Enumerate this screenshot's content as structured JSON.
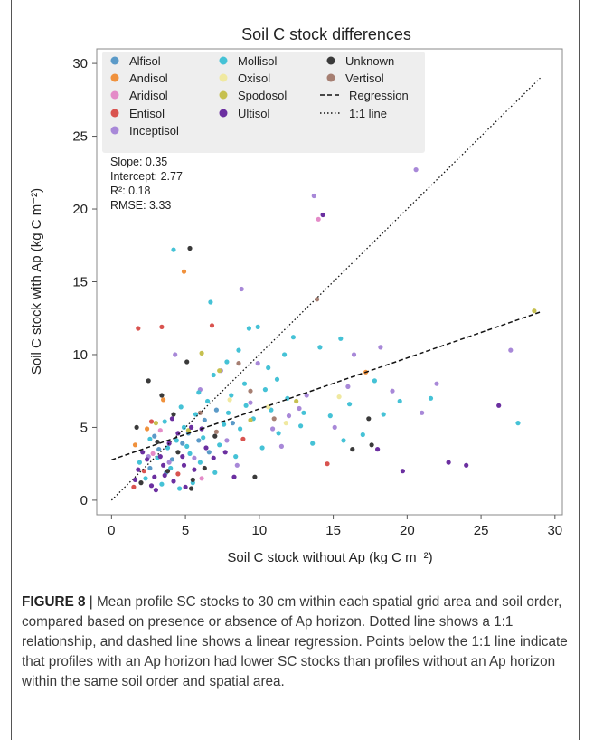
{
  "chart_data": {
    "type": "scatter",
    "title": "Soil C stock differences",
    "xlabel": "Soil C stock without Ap (kg C m⁻²)",
    "ylabel": "Soil C stock with Ap (kg C m⁻²)",
    "xlim": [
      -1,
      30.5
    ],
    "ylim": [
      -1,
      31
    ],
    "xticks": [
      0,
      5,
      10,
      15,
      20,
      25,
      30
    ],
    "yticks": [
      0,
      5,
      10,
      15,
      20,
      25,
      30
    ],
    "grid": false,
    "legend_placement": "top-left",
    "stats": [
      {
        "label": "Slope: 0.35"
      },
      {
        "label": "Intercept: 2.77"
      },
      {
        "label": "R²: 0.18"
      },
      {
        "label": "RMSE: 3.33"
      }
    ],
    "regression": {
      "slope": 0.35,
      "intercept": 2.77,
      "x": [
        0,
        29
      ],
      "label": "Regression"
    },
    "identity": {
      "x": [
        0,
        29
      ],
      "label": "1:1 line"
    },
    "series": [
      {
        "name": "Alfisol",
        "color": "#5b9ac8",
        "points": [
          [
            3.2,
            3.5
          ],
          [
            4.1,
            2.8
          ],
          [
            5.2,
            4.6
          ],
          [
            6.3,
            5.5
          ],
          [
            2.6,
            2.2
          ],
          [
            4.8,
            3.9
          ],
          [
            7.1,
            6.2
          ],
          [
            3.7,
            1.9
          ],
          [
            5.9,
            4.1
          ],
          [
            8.2,
            5.3
          ],
          [
            2.9,
            4.4
          ],
          [
            6.6,
            3.3
          ]
        ]
      },
      {
        "name": "Andisol",
        "color": "#f0913c",
        "points": [
          [
            4.9,
            15.7
          ],
          [
            1.6,
            3.8
          ],
          [
            2.4,
            4.9
          ],
          [
            17.2,
            8.8
          ],
          [
            3.5,
            6.9
          ]
        ]
      },
      {
        "name": "Aridisol",
        "color": "#e48bc8",
        "points": [
          [
            14.0,
            19.3
          ],
          [
            2.8,
            3.2
          ],
          [
            6.1,
            1.5
          ],
          [
            3.3,
            4.8
          ]
        ]
      },
      {
        "name": "Entisol",
        "color": "#d9534f",
        "points": [
          [
            1.8,
            11.8
          ],
          [
            3.4,
            11.9
          ],
          [
            14.6,
            2.5
          ],
          [
            2.2,
            2.0
          ],
          [
            6.8,
            12.0
          ],
          [
            1.5,
            0.9
          ],
          [
            4.5,
            1.8
          ],
          [
            2.7,
            5.4
          ],
          [
            8.9,
            4.2
          ]
        ]
      },
      {
        "name": "Inceptisol",
        "color": "#a888d8",
        "points": [
          [
            20.6,
            22.7
          ],
          [
            13.7,
            20.9
          ],
          [
            4.3,
            10.0
          ],
          [
            8.8,
            14.5
          ],
          [
            27.0,
            10.3
          ],
          [
            22.0,
            8.0
          ],
          [
            19.0,
            7.5
          ],
          [
            16.4,
            10.0
          ],
          [
            21.0,
            6.0
          ],
          [
            18.2,
            10.5
          ],
          [
            12.0,
            5.8
          ],
          [
            10.9,
            4.9
          ],
          [
            7.4,
            8.9
          ],
          [
            9.4,
            6.7
          ],
          [
            6.0,
            7.6
          ],
          [
            13.2,
            7.2
          ],
          [
            11.5,
            3.7
          ],
          [
            8.5,
            2.4
          ],
          [
            5.6,
            2.9
          ],
          [
            15.1,
            5.0
          ],
          [
            9.9,
            9.4
          ],
          [
            3.9,
            2.6
          ],
          [
            2.5,
            3.0
          ],
          [
            7.8,
            4.1
          ],
          [
            16.0,
            7.8
          ],
          [
            12.7,
            6.3
          ]
        ]
      },
      {
        "name": "Mollisol",
        "color": "#45c2d6",
        "points": [
          [
            4.2,
            17.2
          ],
          [
            6.7,
            13.6
          ],
          [
            9.9,
            11.9
          ],
          [
            12.3,
            11.2
          ],
          [
            14.1,
            10.5
          ],
          [
            15.5,
            11.1
          ],
          [
            17.8,
            8.2
          ],
          [
            21.6,
            7.0
          ],
          [
            27.5,
            5.3
          ],
          [
            13.0,
            6.0
          ],
          [
            11.2,
            8.3
          ],
          [
            10.4,
            7.6
          ],
          [
            9.1,
            6.5
          ],
          [
            8.1,
            7.2
          ],
          [
            7.6,
            5.2
          ],
          [
            6.5,
            6.8
          ],
          [
            5.7,
            5.9
          ],
          [
            4.9,
            5.0
          ],
          [
            4.4,
            4.1
          ],
          [
            3.8,
            3.6
          ],
          [
            3.1,
            2.9
          ],
          [
            2.6,
            4.2
          ],
          [
            5.3,
            3.2
          ],
          [
            6.0,
            2.6
          ],
          [
            7.3,
            3.8
          ],
          [
            8.7,
            4.9
          ],
          [
            9.6,
            5.6
          ],
          [
            10.8,
            6.2
          ],
          [
            11.9,
            7.0
          ],
          [
            12.8,
            5.1
          ],
          [
            14.8,
            5.8
          ],
          [
            16.1,
            6.6
          ],
          [
            18.4,
            5.9
          ],
          [
            19.5,
            6.8
          ],
          [
            17.0,
            4.5
          ],
          [
            15.7,
            4.1
          ],
          [
            13.6,
            3.9
          ],
          [
            11.3,
            4.6
          ],
          [
            10.2,
            3.6
          ],
          [
            8.4,
            3.0
          ],
          [
            7.0,
            1.9
          ],
          [
            5.5,
            1.2
          ],
          [
            4.6,
            0.8
          ],
          [
            3.4,
            1.1
          ],
          [
            2.3,
            1.5
          ],
          [
            1.9,
            2.6
          ],
          [
            3.6,
            5.4
          ],
          [
            4.7,
            6.4
          ],
          [
            5.9,
            7.4
          ],
          [
            6.9,
            8.6
          ],
          [
            7.8,
            9.5
          ],
          [
            8.6,
            10.3
          ],
          [
            9.3,
            11.8
          ],
          [
            10.6,
            9.1
          ],
          [
            11.7,
            10.0
          ],
          [
            6.2,
            4.3
          ],
          [
            5.1,
            3.7
          ],
          [
            4.0,
            2.2
          ],
          [
            7.9,
            6.0
          ],
          [
            9.0,
            8.0
          ]
        ]
      },
      {
        "name": "Oxisol",
        "color": "#f0e9a0",
        "points": [
          [
            10.6,
            6.4
          ],
          [
            15.4,
            7.1
          ],
          [
            8.0,
            6.9
          ],
          [
            11.8,
            5.3
          ]
        ]
      },
      {
        "name": "Spodosol",
        "color": "#c6c04f",
        "points": [
          [
            28.6,
            13.0
          ],
          [
            7.3,
            8.9
          ],
          [
            5.2,
            4.8
          ],
          [
            3.0,
            5.3
          ],
          [
            9.4,
            5.5
          ],
          [
            12.5,
            6.8
          ],
          [
            6.1,
            10.1
          ]
        ]
      },
      {
        "name": "Ultisol",
        "color": "#6b2fa0",
        "points": [
          [
            14.3,
            19.6
          ],
          [
            22.8,
            2.6
          ],
          [
            24.0,
            2.4
          ],
          [
            26.2,
            6.5
          ],
          [
            18.0,
            3.5
          ],
          [
            19.7,
            2.0
          ],
          [
            4.8,
            3.0
          ],
          [
            3.5,
            2.4
          ],
          [
            2.9,
            1.6
          ],
          [
            4.2,
            1.3
          ],
          [
            3.9,
            3.9
          ],
          [
            2.4,
            2.8
          ],
          [
            5.6,
            2.1
          ],
          [
            6.4,
            3.6
          ],
          [
            5.0,
            0.9
          ],
          [
            3.0,
            0.7
          ],
          [
            1.8,
            2.1
          ],
          [
            2.1,
            3.3
          ],
          [
            4.5,
            4.6
          ],
          [
            3.3,
            3.0
          ],
          [
            6.9,
            2.9
          ],
          [
            7.7,
            3.3
          ],
          [
            8.3,
            1.6
          ],
          [
            5.4,
            5.0
          ],
          [
            4.1,
            5.6
          ],
          [
            6.1,
            4.9
          ],
          [
            2.7,
            1.0
          ],
          [
            3.6,
            1.7
          ],
          [
            4.9,
            2.4
          ],
          [
            1.6,
            1.4
          ]
        ]
      },
      {
        "name": "Unknown",
        "color": "#3a3a3a",
        "points": [
          [
            5.3,
            17.3
          ],
          [
            17.6,
            3.8
          ],
          [
            16.3,
            3.5
          ],
          [
            17.4,
            5.6
          ],
          [
            9.7,
            1.6
          ],
          [
            4.2,
            5.9
          ],
          [
            3.4,
            7.2
          ],
          [
            2.5,
            8.2
          ],
          [
            5.1,
            9.5
          ],
          [
            5.5,
            1.4
          ],
          [
            3.8,
            2.0
          ],
          [
            2.0,
            1.2
          ],
          [
            6.3,
            2.2
          ],
          [
            7.0,
            4.4
          ],
          [
            4.5,
            3.3
          ],
          [
            3.1,
            4.0
          ],
          [
            5.4,
            0.8
          ],
          [
            1.7,
            5.0
          ]
        ]
      },
      {
        "name": "Vertisol",
        "color": "#a67f72",
        "points": [
          [
            13.9,
            13.8
          ],
          [
            8.6,
            9.4
          ],
          [
            9.4,
            7.5
          ],
          [
            11.0,
            5.6
          ],
          [
            7.1,
            4.7
          ],
          [
            6.0,
            6.0
          ]
        ]
      }
    ],
    "legend": [
      {
        "label": "Alfisol",
        "kind": "dot",
        "color": "#5b9ac8"
      },
      {
        "label": "Andisol",
        "kind": "dot",
        "color": "#f0913c"
      },
      {
        "label": "Aridisol",
        "kind": "dot",
        "color": "#e48bc8"
      },
      {
        "label": "Entisol",
        "kind": "dot",
        "color": "#d9534f"
      },
      {
        "label": "Inceptisol",
        "kind": "dot",
        "color": "#a888d8"
      },
      {
        "label": "Mollisol",
        "kind": "dot",
        "color": "#45c2d6"
      },
      {
        "label": "Oxisol",
        "kind": "dot",
        "color": "#f0e9a0"
      },
      {
        "label": "Spodosol",
        "kind": "dot",
        "color": "#c6c04f"
      },
      {
        "label": "Ultisol",
        "kind": "dot",
        "color": "#6b2fa0"
      },
      {
        "label": "Unknown",
        "kind": "dot",
        "color": "#3a3a3a"
      },
      {
        "label": "Vertisol",
        "kind": "dot",
        "color": "#a67f72"
      },
      {
        "label": "Regression",
        "kind": "dashed"
      },
      {
        "label": "1:1 line",
        "kind": "dotted"
      }
    ]
  },
  "caption": {
    "label": "FIGURE 8",
    "separator": " | ",
    "text": "Mean profile SC stocks to 30 cm within each spatial grid area and soil order, compared based on presence or absence of Ap horizon. Dotted line shows a 1:1 relationship, and dashed line shows a linear regression. Points below the 1:1 line indicate that profiles with an Ap horizon had lower SC stocks than profiles without an Ap horizon within the same soil order and spatial area."
  }
}
